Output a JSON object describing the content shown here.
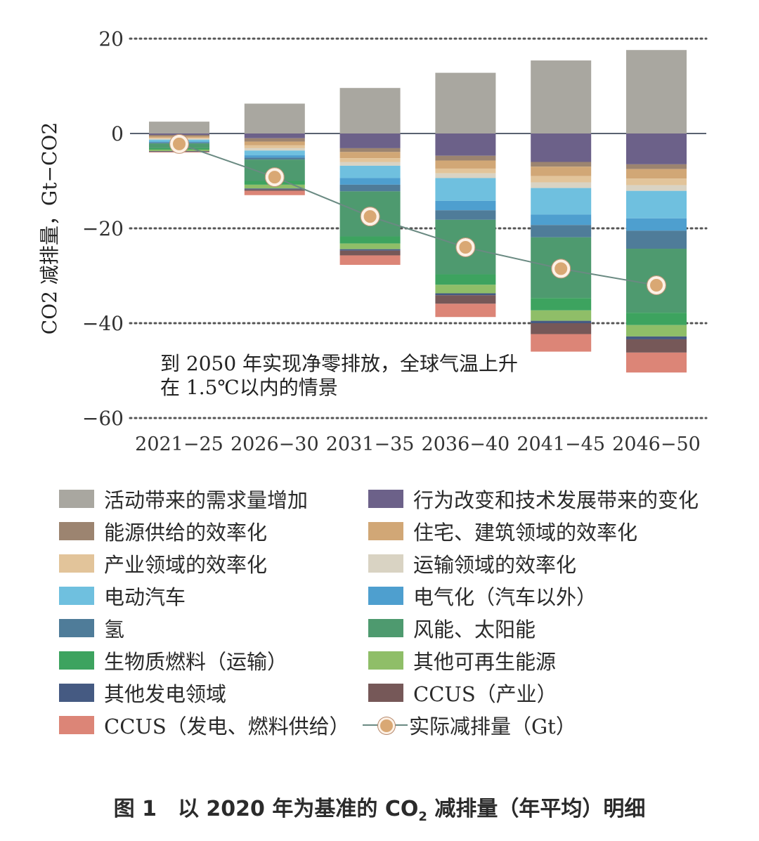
{
  "chart_data": {
    "type": "bar",
    "stacked": true,
    "categories": [
      "2021−25",
      "2026−30",
      "2031−35",
      "2036−40",
      "2041−45",
      "2046−50"
    ],
    "ylabel": "CO2 减排量，Gt−CO2",
    "ylim": [
      -60,
      20
    ],
    "yticks": [
      20,
      0,
      -20,
      -40,
      -60
    ],
    "ytick_labels": [
      "20",
      "0",
      "−20",
      "−40",
      "−60"
    ],
    "grid": "dotted",
    "annotation": "到 2050 年实现净零排放，全球气温上升在 1.5℃以内的情景",
    "annotation_lines": [
      "到 2050 年实现净零排放，全球气温上升",
      "在 1.5℃以内的情景"
    ],
    "series": [
      {
        "name": "活动带来的需求量增加",
        "color": "#a9a7a0",
        "values": [
          2.5,
          6.3,
          9.6,
          12.8,
          15.4,
          17.6
        ]
      },
      {
        "name": "行为改变和技术发展带来的变化",
        "color": "#6c6189",
        "values": [
          -0.3,
          -1.0,
          -3.1,
          -4.7,
          -6.0,
          -6.5
        ]
      },
      {
        "name": "能源供给的效率化",
        "color": "#9c8470",
        "values": [
          -0.3,
          -0.7,
          -0.8,
          -1.0,
          -1.0,
          -1.0
        ]
      },
      {
        "name": "住宅、建筑领域的效率化",
        "color": "#d1a776",
        "values": [
          -0.3,
          -0.8,
          -1.3,
          -1.7,
          -2.0,
          -2.0
        ]
      },
      {
        "name": "产业领域的效率化",
        "color": "#e2c49a",
        "values": [
          -0.2,
          -0.6,
          -0.8,
          -1.0,
          -1.3,
          -1.4
        ]
      },
      {
        "name": "运输领域的效率化",
        "color": "#d9d3c3",
        "values": [
          -0.2,
          -0.5,
          -0.8,
          -1.0,
          -1.2,
          -1.2
        ]
      },
      {
        "name": "电动汽车",
        "color": "#6fc0df",
        "values": [
          -0.4,
          -1.0,
          -2.6,
          -4.8,
          -5.6,
          -5.8
        ]
      },
      {
        "name": "电气化（汽车以外）",
        "color": "#4e9fcf",
        "values": [
          -0.2,
          -0.5,
          -1.4,
          -2.0,
          -2.2,
          -2.6
        ]
      },
      {
        "name": "氢",
        "color": "#4f7c99",
        "values": [
          -0.2,
          -0.4,
          -1.4,
          -2.0,
          -2.6,
          -3.8
        ]
      },
      {
        "name": "风能、太阳能",
        "color": "#4e9a6f",
        "values": [
          -1.0,
          -4.5,
          -9.5,
          -11.5,
          -12.8,
          -13.5
        ]
      },
      {
        "name": "生物质燃料（运输）",
        "color": "#3da35f",
        "values": [
          -0.3,
          -0.8,
          -1.5,
          -2.2,
          -2.6,
          -2.6
        ]
      },
      {
        "name": "其他可再生能源",
        "color": "#8fbe68",
        "values": [
          -0.3,
          -0.8,
          -1.2,
          -1.8,
          -2.2,
          -2.4
        ]
      },
      {
        "name": "其他发电领域",
        "color": "#455a82",
        "values": [
          -0.1,
          -0.2,
          -0.3,
          -0.4,
          -0.5,
          -0.6
        ]
      },
      {
        "name": "CCUS（产业）",
        "color": "#765858",
        "values": [
          -0.1,
          -0.3,
          -1.0,
          -1.8,
          -2.3,
          -2.8
        ]
      },
      {
        "name": "CCUS（发电、燃料供给）",
        "color": "#dc8577",
        "values": [
          -0.1,
          -0.9,
          -2.0,
          -2.8,
          -3.7,
          -4.2
        ]
      }
    ],
    "net_series": {
      "name": "实际减排量（Gt）",
      "values": [
        -2.2,
        -9.2,
        -17.5,
        -24.0,
        -28.5,
        -32.0
      ]
    }
  },
  "caption": {
    "prefix": "图 1　以 2020 年为基准的 CO",
    "sub": "2",
    "suffix": " 减排量（年平均）明细"
  }
}
